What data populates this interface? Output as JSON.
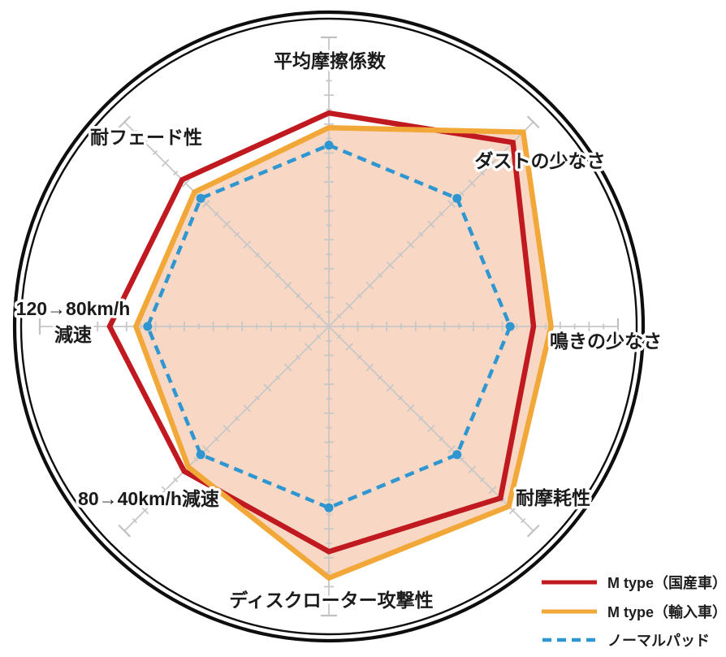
{
  "figure": {
    "description": "ブレーキパッド性能 レーダーチャート",
    "background_color": "#ffffff",
    "ring_color": "#0e0e0e",
    "grid_color": "#c7c7c7"
  },
  "chart_data": {
    "type": "radar",
    "categories": [
      "平均摩擦係数",
      "ダストの少なさ",
      "鳴きの少なさ",
      "耐摩耗性",
      "ディスクローター攻撃性",
      "80→40km/h減速",
      "120→80km/h減速",
      "耐フェード性"
    ],
    "series": [
      {
        "id": "m-type-domestic",
        "name": "M type（国産車）",
        "color": "#c0191f",
        "line_style": "solid",
        "fill": false,
        "markers": false,
        "values": [
          7.3,
          8.9,
          7.0,
          8.3,
          7.7,
          7.0,
          7.5,
          7.1
        ]
      },
      {
        "id": "m-type-import",
        "name": "M type（輸入車）",
        "color": "#f2a838",
        "line_style": "solid",
        "fill": true,
        "fill_color": "#f8d8c4",
        "markers": false,
        "values": [
          6.8,
          9.4,
          7.6,
          8.7,
          8.6,
          6.8,
          6.6,
          6.5
        ]
      },
      {
        "id": "normal-pad",
        "name": "ノーマルパッド",
        "color": "#2e96d1",
        "line_style": "dashed",
        "fill": false,
        "markers": true,
        "values": [
          6.2,
          6.2,
          6.2,
          6.2,
          6.2,
          6.2,
          6.2,
          6.2
        ]
      }
    ],
    "scale": {
      "min": 0,
      "max": 10,
      "minor_tick": 0.5,
      "major_tick": 1.0
    },
    "grid": "radial ticks, no rings",
    "legend_position": "bottom-right"
  },
  "labels": {
    "top": "平均摩擦係数",
    "top_right": "ダストの少なさ",
    "right": "鳴きの少なさ",
    "bottom_right": "耐摩耗性",
    "bottom": "ディスクローター攻撃性",
    "bottom_left": "80→40km/h減速",
    "left_line1": "120→80km/h",
    "left_line2": "減速",
    "top_left": "耐フェード性"
  },
  "legend": {
    "items": [
      {
        "label": "M type（国産車）",
        "color": "#c0191f",
        "style": "solid"
      },
      {
        "label": "M type（輸入車）",
        "color": "#f2a838",
        "style": "solid"
      },
      {
        "label": "ノーマルパッド",
        "color": "#2e96d1",
        "style": "dashed"
      }
    ]
  }
}
